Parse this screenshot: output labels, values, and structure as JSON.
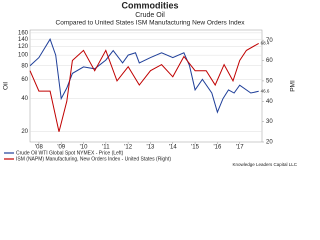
{
  "chart_data": {
    "type": "line",
    "title": "Commodities",
    "subtitle": "Crude Oil",
    "subtitle2": "Compared to United States ISM Manufacturing New Orders Index",
    "ylabel": "Oil",
    "y2label": "PMI",
    "source": "Knowledge Leaders Capital LLC",
    "xlim": [
      2007.6,
      2018
    ],
    "xticks": [
      {
        "value": 2008,
        "label": "'08"
      },
      {
        "value": 2009,
        "label": "'09"
      },
      {
        "value": 2010,
        "label": "'10"
      },
      {
        "value": 2011,
        "label": "'11"
      },
      {
        "value": 2012,
        "label": "'12"
      },
      {
        "value": 2013,
        "label": "'13"
      },
      {
        "value": 2014,
        "label": "'14"
      },
      {
        "value": 2015,
        "label": "'15"
      },
      {
        "value": 2016,
        "label": "'16"
      },
      {
        "value": 2017,
        "label": "'17"
      }
    ],
    "ylim": [
      16,
      170
    ],
    "log_y": true,
    "yticks": [
      20,
      40,
      60,
      80,
      100,
      120,
      140,
      160
    ],
    "y2lim": [
      20,
      75
    ],
    "y2ticks": [
      20,
      30,
      40,
      50,
      60,
      70
    ],
    "grid": true,
    "series": [
      {
        "name": "Crude Oil WTI Global Spot NYMEX - Price (Left)",
        "color": "#1f3f99",
        "x": [
          2007.6,
          2008.0,
          2008.5,
          2008.75,
          2009.0,
          2009.25,
          2009.5,
          2010.0,
          2010.5,
          2011.0,
          2011.33,
          2011.75,
          2012.0,
          2012.33,
          2012.5,
          2013.0,
          2013.5,
          2014.0,
          2014.5,
          2014.75,
          2015.0,
          2015.33,
          2015.75,
          2016.0,
          2016.25,
          2016.5,
          2016.75,
          2017.0,
          2017.5,
          2017.85
        ],
        "values": [
          80,
          95,
          140,
          100,
          40,
          50,
          68,
          78,
          75,
          90,
          110,
          85,
          100,
          105,
          85,
          95,
          105,
          95,
          105,
          80,
          48,
          60,
          45,
          30,
          40,
          48,
          45,
          53,
          45,
          46.6
        ]
      },
      {
        "name": "ISM (NAPM) Manufacturing, New Orders Index - United States (Right)",
        "color": "#c00000",
        "axis": "y2",
        "x": [
          2007.6,
          2008.0,
          2008.5,
          2008.9,
          2009.25,
          2009.5,
          2010.0,
          2010.5,
          2011.0,
          2011.5,
          2012.0,
          2012.5,
          2013.0,
          2013.5,
          2014.0,
          2014.5,
          2015.0,
          2015.5,
          2015.9,
          2016.3,
          2016.7,
          2017.0,
          2017.3,
          2017.85
        ],
        "values": [
          55,
          45,
          45,
          25,
          40,
          60,
          65,
          55,
          65,
          50,
          57,
          48,
          55,
          58,
          52,
          62,
          55,
          55,
          48,
          58,
          50,
          60,
          65,
          68.4
        ]
      }
    ],
    "end_labels": [
      "46.6",
      "68.4"
    ]
  }
}
